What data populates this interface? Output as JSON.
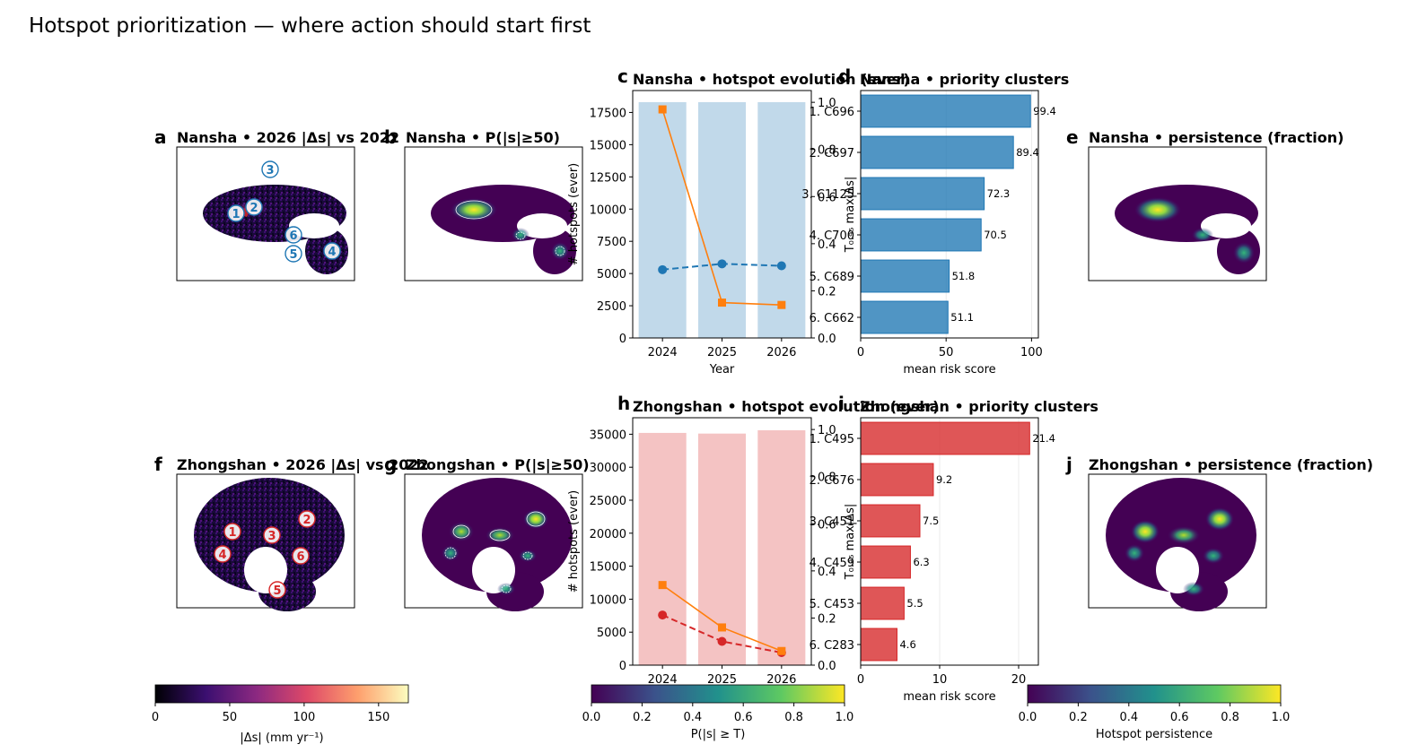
{
  "figure_title": "Hotspot prioritization — where action should start first",
  "panels": {
    "a": {
      "letter": "a",
      "title": "Nansha • 2026 |Δs| vs 2022"
    },
    "b": {
      "letter": "b",
      "title": "Nansha • P(|s|≥50)"
    },
    "c": {
      "letter": "c",
      "title": "Nansha • hotspot evolution (ever)"
    },
    "d": {
      "letter": "d",
      "title": "Nansha • priority clusters"
    },
    "e": {
      "letter": "e",
      "title": "Nansha • persistence (fraction)"
    },
    "f": {
      "letter": "f",
      "title": "Zhongshan • 2026 |Δs| vs 2022"
    },
    "g": {
      "letter": "g",
      "title": "Zhongshan • P(|s|≥50)"
    },
    "h": {
      "letter": "h",
      "title": "Zhongshan • hotspot evolution (ever)"
    },
    "i": {
      "letter": "i",
      "title": "Zhongshan • priority clusters"
    },
    "j": {
      "letter": "j",
      "title": "Zhongshan • persistence (fraction)"
    }
  },
  "marker_labels_nansha": [
    "1",
    "2",
    "3",
    "4",
    "5",
    "6"
  ],
  "marker_labels_zhongshan": [
    "1",
    "2",
    "3",
    "4",
    "5",
    "6"
  ],
  "colors": {
    "nansha": "#1f77b4",
    "zhongshan": "#d62728",
    "orange": "#ff7f0e"
  },
  "colorbars": [
    {
      "label": "|Δs| (mm yr⁻¹)",
      "cmap": "magma",
      "ticks": [
        "0",
        "50",
        "100",
        "150"
      ],
      "range": [
        0,
        170
      ]
    },
    {
      "label": "P(|s| ≥ T)",
      "cmap": "viridis",
      "ticks": [
        "0.0",
        "0.2",
        "0.4",
        "0.6",
        "0.8",
        "1.0"
      ],
      "range": [
        0,
        1
      ]
    },
    {
      "label": "Hotspot persistence",
      "cmap": "viridis",
      "ticks": [
        "0.0",
        "0.2",
        "0.4",
        "0.6",
        "0.8",
        "1.0"
      ],
      "range": [
        0,
        1
      ]
    }
  ],
  "chart_data": [
    {
      "id": "c",
      "type": "bar",
      "title": "Nansha • hotspot evolution (ever)",
      "categories": [
        "2024",
        "2025",
        "2026"
      ],
      "xlabel": "Year",
      "ylabel": "# hotspots (ever)",
      "ylim": [
        0,
        19200
      ],
      "yticks": [
        "0",
        "2500",
        "5000",
        "7500",
        "10000",
        "12500",
        "15000",
        "17500"
      ],
      "y2label": "T₀.₉₅ max|Δs|",
      "y2lim": [
        0,
        1.05
      ],
      "y2ticks": [
        "0.0",
        "0.2",
        "0.4",
        "0.6",
        "0.8",
        "1.0"
      ],
      "series": [
        {
          "values": [
            18300,
            18300,
            18300
          ],
          "axis": "left",
          "kind": "bar"
        },
        {
          "values": [
            5300,
            5750,
            5600
          ],
          "axis": "left",
          "kind": "dashed-line"
        },
        {
          "values": [
            0.97,
            0.15,
            0.14
          ],
          "axis": "right",
          "kind": "line"
        }
      ]
    },
    {
      "id": "d",
      "type": "bar",
      "title": "Nansha • priority clusters",
      "categories": [
        "1. C696",
        "2. C697",
        "3. C1125",
        "4. C700",
        "5. C689",
        "6. C662"
      ],
      "values": [
        99.4,
        89.4,
        72.3,
        70.5,
        51.8,
        51.1
      ],
      "data_labels": [
        "99.4",
        "89.4",
        "72.3",
        "70.5",
        "51.8",
        "51.1"
      ],
      "xlabel": "mean risk score",
      "xlim": [
        0,
        104
      ],
      "xticks": [
        "0",
        "50",
        "100"
      ]
    },
    {
      "id": "h",
      "type": "bar",
      "title": "Zhongshan • hotspot evolution (ever)",
      "categories": [
        "2024",
        "2025",
        "2026"
      ],
      "xlabel": "",
      "ylabel": "# hotspots (ever)",
      "ylim": [
        0,
        37500
      ],
      "yticks": [
        "0",
        "5000",
        "10000",
        "15000",
        "20000",
        "25000",
        "30000",
        "35000"
      ],
      "y2label": "T₀.₉₅ max|Δs|",
      "y2lim": [
        0,
        1.05
      ],
      "y2ticks": [
        "0.0",
        "0.2",
        "0.4",
        "0.6",
        "0.8",
        "1.0"
      ],
      "series": [
        {
          "values": [
            35200,
            35100,
            35600
          ],
          "axis": "left",
          "kind": "bar"
        },
        {
          "values": [
            7600,
            3600,
            1900
          ],
          "axis": "left",
          "kind": "dashed-line"
        },
        {
          "values": [
            0.34,
            0.16,
            0.06
          ],
          "axis": "right",
          "kind": "line"
        }
      ]
    },
    {
      "id": "i",
      "type": "bar",
      "title": "Zhongshan • priority clusters",
      "categories": [
        "1. C495",
        "2. C676",
        "3. C451",
        "4. C459",
        "5. C453",
        "6. C283"
      ],
      "values": [
        21.4,
        9.2,
        7.5,
        6.3,
        5.5,
        4.6
      ],
      "data_labels": [
        "21.4",
        "9.2",
        "7.5",
        "6.3",
        "5.5",
        "4.6"
      ],
      "xlabel": "mean risk score",
      "xlim": [
        0,
        22.5
      ],
      "xticks": [
        "0",
        "10",
        "20"
      ]
    }
  ]
}
